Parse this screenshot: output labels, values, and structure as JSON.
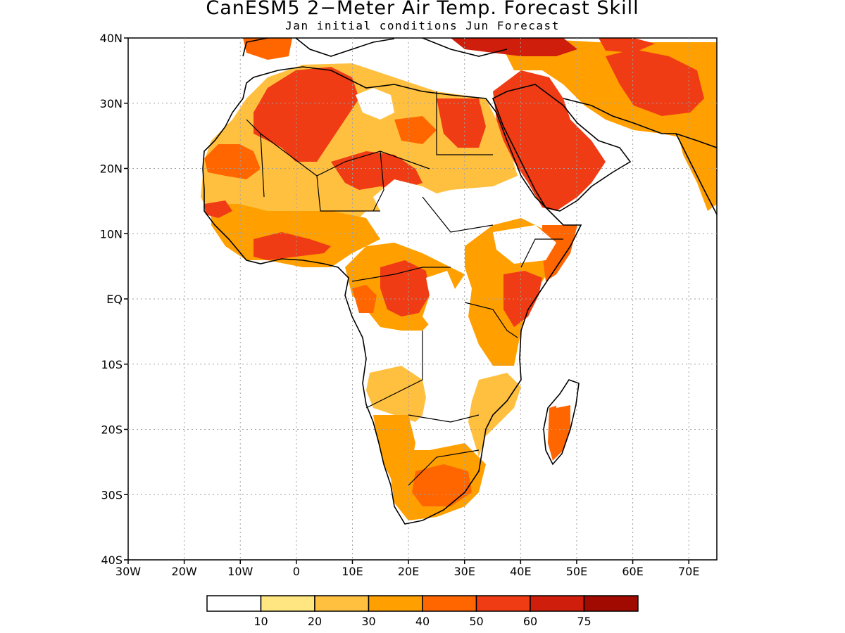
{
  "title": "CanESM5 2−Meter Air Temp. Forecast Skill",
  "subtitle": "Jan initial conditions   Jun Forecast",
  "map": {
    "lat_labels": [
      "40N",
      "30N",
      "20N",
      "10N",
      "EQ",
      "10S",
      "20S",
      "30S",
      "40S"
    ],
    "lon_labels": [
      "30W",
      "20W",
      "10W",
      "0",
      "10E",
      "20E",
      "30E",
      "40E",
      "50E",
      "60E",
      "70E"
    ],
    "lon_range": [
      -30,
      75
    ],
    "lat_range": [
      -40,
      40
    ],
    "grid": "dotted",
    "region": "Africa and Arabian Peninsula"
  },
  "legend": {
    "labels": [
      "10",
      "20",
      "30",
      "40",
      "50",
      "60",
      "75"
    ],
    "colors": [
      "#ffffff",
      "#ffe680",
      "#ffc040",
      "#ffa000",
      "#ff6600",
      "#f03c14",
      "#d01e0c",
      "#a00a00"
    ]
  },
  "colors": {
    "land_outline": "#000000",
    "gridline": "#a0a0a0"
  }
}
